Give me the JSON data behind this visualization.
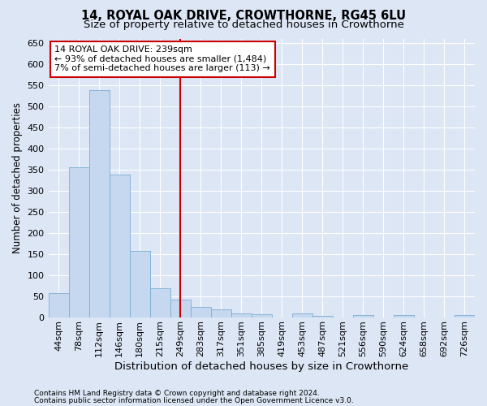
{
  "title": "14, ROYAL OAK DRIVE, CROWTHORNE, RG45 6LU",
  "subtitle": "Size of property relative to detached houses in Crowthorne",
  "xlabel": "Distribution of detached houses by size in Crowthorne",
  "ylabel": "Number of detached properties",
  "footnote1": "Contains HM Land Registry data © Crown copyright and database right 2024.",
  "footnote2": "Contains public sector information licensed under the Open Government Licence v3.0.",
  "bin_labels": [
    "44sqm",
    "78sqm",
    "112sqm",
    "146sqm",
    "180sqm",
    "215sqm",
    "249sqm",
    "283sqm",
    "317sqm",
    "351sqm",
    "385sqm",
    "419sqm",
    "453sqm",
    "487sqm",
    "521sqm",
    "556sqm",
    "590sqm",
    "624sqm",
    "658sqm",
    "692sqm",
    "726sqm"
  ],
  "bar_values": [
    58,
    355,
    538,
    338,
    157,
    70,
    42,
    25,
    20,
    10,
    8,
    0,
    9,
    3,
    0,
    5,
    0,
    5,
    0,
    0,
    5
  ],
  "bar_color": "#c5d8f0",
  "bar_edge_color": "#7aadd4",
  "vline_x": 6,
  "vline_color": "#cc0000",
  "annotation_box_text": "14 ROYAL OAK DRIVE: 239sqm\n← 93% of detached houses are smaller (1,484)\n7% of semi-detached houses are larger (113) →",
  "annotation_box_color": "#cc0000",
  "annotation_box_bg": "#ffffff",
  "ylim": [
    0,
    660
  ],
  "yticks": [
    0,
    50,
    100,
    150,
    200,
    250,
    300,
    350,
    400,
    450,
    500,
    550,
    600,
    650
  ],
  "bg_color": "#dce6f5",
  "plot_bg_color": "#dce6f5",
  "grid_color": "#ffffff",
  "title_fontsize": 10.5,
  "subtitle_fontsize": 9.5,
  "xlabel_fontsize": 9.5,
  "ylabel_fontsize": 8.5,
  "tick_fontsize": 8,
  "annotation_fontsize": 8,
  "footnote_fontsize": 6.5
}
